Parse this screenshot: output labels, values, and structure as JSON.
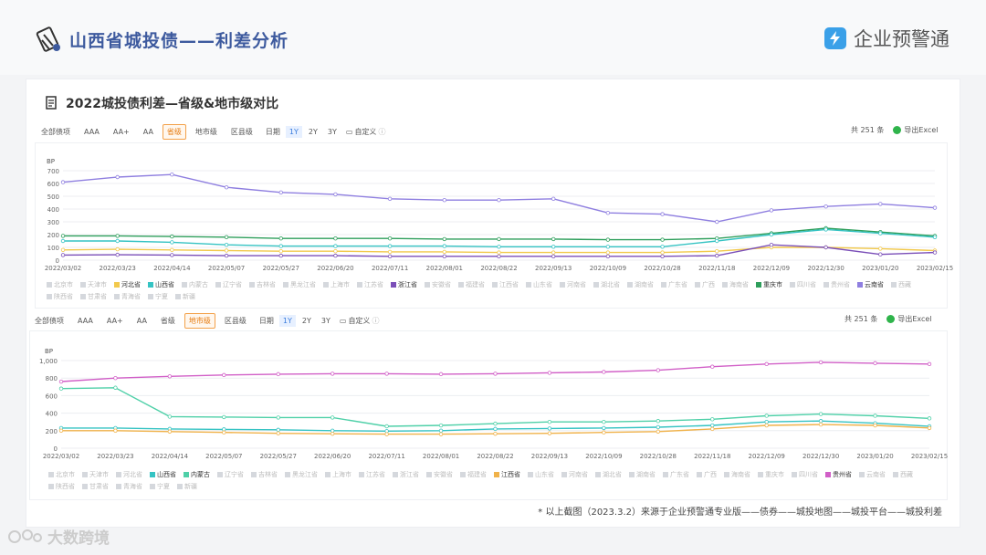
{
  "header": {
    "title": "山西省城投债——利差分析",
    "brand": "企业预警通"
  },
  "card": {
    "title": "2022城投债利差—省级&地市级对比"
  },
  "toolbar_top": {
    "tabs": [
      "全部债项",
      "AAA",
      "AA+",
      "AA",
      "省级",
      "地市级",
      "区县级"
    ],
    "active": "省级",
    "date_label": "日期",
    "periods": [
      "1Y",
      "2Y",
      "3Y"
    ],
    "active_period": "1Y",
    "custom": "自定义",
    "count": "共 251 条",
    "export": "导出Excel"
  },
  "toolbar_bottom": {
    "tabs": [
      "全部债项",
      "AAA",
      "AA+",
      "AA",
      "省级",
      "地市级",
      "区县级"
    ],
    "active": "地市级",
    "date_label": "日期",
    "periods": [
      "1Y",
      "2Y",
      "3Y"
    ],
    "active_period": "1Y",
    "custom": "自定义",
    "count": "共 251 条",
    "export": "导出Excel"
  },
  "legend_top": [
    {
      "name": "北京市",
      "color": ""
    },
    {
      "name": "天津市",
      "color": ""
    },
    {
      "name": "河北省",
      "color": "#f2c94c"
    },
    {
      "name": "山西省",
      "color": "#35c3c3"
    },
    {
      "name": "内蒙古",
      "color": ""
    },
    {
      "name": "辽宁省",
      "color": ""
    },
    {
      "name": "吉林省",
      "color": ""
    },
    {
      "name": "黑龙江省",
      "color": ""
    },
    {
      "name": "上海市",
      "color": ""
    },
    {
      "name": "江苏省",
      "color": ""
    },
    {
      "name": "浙江省",
      "color": "#7b4fb8"
    },
    {
      "name": "安徽省",
      "color": ""
    },
    {
      "name": "福建省",
      "color": ""
    },
    {
      "name": "江西省",
      "color": ""
    },
    {
      "name": "山东省",
      "color": ""
    },
    {
      "name": "河南省",
      "color": ""
    },
    {
      "name": "湖北省",
      "color": ""
    },
    {
      "name": "湖南省",
      "color": ""
    },
    {
      "name": "广东省",
      "color": ""
    },
    {
      "name": "广西",
      "color": ""
    },
    {
      "name": "海南省",
      "color": ""
    },
    {
      "name": "重庆市",
      "color": "#2e9e5b"
    },
    {
      "name": "四川省",
      "color": ""
    },
    {
      "name": "贵州省",
      "color": ""
    },
    {
      "name": "云南省",
      "color": "#8f7fe0"
    },
    {
      "name": "西藏",
      "color": ""
    },
    {
      "name": "陕西省",
      "color": ""
    },
    {
      "name": "甘肃省",
      "color": ""
    },
    {
      "name": "青海省",
      "color": ""
    },
    {
      "name": "宁夏",
      "color": ""
    },
    {
      "name": "新疆",
      "color": ""
    }
  ],
  "legend_bottom": [
    {
      "name": "北京市",
      "color": ""
    },
    {
      "name": "天津市",
      "color": ""
    },
    {
      "name": "河北省",
      "color": ""
    },
    {
      "name": "山西省",
      "color": "#35c3c3"
    },
    {
      "name": "内蒙古",
      "color": "#4fd0a8"
    },
    {
      "name": "辽宁省",
      "color": ""
    },
    {
      "name": "吉林省",
      "color": ""
    },
    {
      "name": "黑龙江省",
      "color": ""
    },
    {
      "name": "上海市",
      "color": ""
    },
    {
      "name": "江苏省",
      "color": ""
    },
    {
      "name": "浙江省",
      "color": ""
    },
    {
      "name": "安徽省",
      "color": ""
    },
    {
      "name": "福建省",
      "color": ""
    },
    {
      "name": "江西省",
      "color": "#f0b24a"
    },
    {
      "name": "山东省",
      "color": ""
    },
    {
      "name": "河南省",
      "color": ""
    },
    {
      "name": "湖北省",
      "color": ""
    },
    {
      "name": "湖南省",
      "color": ""
    },
    {
      "name": "广东省",
      "color": ""
    },
    {
      "name": "广西",
      "color": ""
    },
    {
      "name": "海南省",
      "color": ""
    },
    {
      "name": "重庆市",
      "color": ""
    },
    {
      "name": "四川省",
      "color": ""
    },
    {
      "name": "贵州省",
      "color": "#d15fc7"
    },
    {
      "name": "云南省",
      "color": ""
    },
    {
      "name": "西藏",
      "color": ""
    },
    {
      "name": "陕西省",
      "color": ""
    },
    {
      "name": "甘肃省",
      "color": ""
    },
    {
      "name": "青海省",
      "color": ""
    },
    {
      "name": "宁夏",
      "color": ""
    },
    {
      "name": "新疆",
      "color": ""
    }
  ],
  "footer": {
    "note": "* 以上截图（2023.3.2）来源于企业预警通专业版——债券——城投地图——城投平台——城投利差"
  },
  "watermark": "大数跨境",
  "chart_data": [
    {
      "type": "line",
      "ylabel": "BP",
      "ylim": [
        0,
        700
      ],
      "yticks": [
        0,
        100,
        200,
        300,
        400,
        500,
        600,
        700
      ],
      "x": [
        "2022/03/02",
        "2022/03/23",
        "2022/04/14",
        "2022/05/07",
        "2022/05/27",
        "2022/06/20",
        "2022/07/11",
        "2022/08/01",
        "2022/08/22",
        "2022/09/13",
        "2022/10/09",
        "2022/10/28",
        "2022/11/18",
        "2022/12/09",
        "2022/12/30",
        "2023/01/20",
        "2023/02/15"
      ],
      "series": [
        {
          "name": "云南省",
          "color": "#8f7fe0",
          "values": [
            610,
            650,
            670,
            570,
            530,
            515,
            480,
            470,
            470,
            480,
            370,
            360,
            300,
            390,
            420,
            440,
            410
          ]
        },
        {
          "name": "重庆市",
          "color": "#2e9e5b",
          "values": [
            190,
            190,
            185,
            180,
            170,
            170,
            170,
            165,
            165,
            165,
            160,
            160,
            170,
            210,
            250,
            220,
            190
          ]
        },
        {
          "name": "山西省",
          "color": "#35c3c3",
          "values": [
            150,
            150,
            140,
            120,
            110,
            110,
            110,
            110,
            105,
            105,
            105,
            105,
            150,
            200,
            240,
            210,
            180
          ]
        },
        {
          "name": "河北省",
          "color": "#f2c94c",
          "values": [
            80,
            85,
            80,
            75,
            70,
            70,
            65,
            65,
            60,
            60,
            60,
            60,
            70,
            100,
            100,
            90,
            75
          ]
        },
        {
          "name": "浙江省",
          "color": "#7b4fb8",
          "values": [
            40,
            42,
            40,
            35,
            35,
            35,
            30,
            30,
            30,
            30,
            30,
            30,
            35,
            120,
            100,
            45,
            60
          ]
        }
      ]
    },
    {
      "type": "line",
      "ylabel": "BP",
      "ylim": [
        0,
        1000
      ],
      "yticks": [
        0,
        200,
        400,
        600,
        800,
        1000
      ],
      "ytick_labels": [
        "0",
        "200",
        "400",
        "600",
        "800",
        "1,000"
      ],
      "x": [
        "2022/03/02",
        "2022/03/23",
        "2022/04/14",
        "2022/05/07",
        "2022/05/27",
        "2022/06/20",
        "2022/07/11",
        "2022/08/01",
        "2022/08/22",
        "2022/09/13",
        "2022/10/09",
        "2022/10/28",
        "2022/11/18",
        "2022/12/09",
        "2022/12/30",
        "2023/01/20",
        "2023/02/15"
      ],
      "series": [
        {
          "name": "贵州省",
          "color": "#d15fc7",
          "values": [
            760,
            800,
            820,
            835,
            845,
            850,
            850,
            845,
            850,
            860,
            870,
            890,
            930,
            960,
            980,
            970,
            960
          ]
        },
        {
          "name": "内蒙古",
          "color": "#4fd0a8",
          "values": [
            680,
            690,
            360,
            355,
            350,
            350,
            250,
            260,
            280,
            300,
            300,
            310,
            330,
            370,
            390,
            370,
            340
          ]
        },
        {
          "name": "山西省",
          "color": "#35c3c3",
          "values": [
            230,
            230,
            220,
            215,
            210,
            200,
            195,
            200,
            220,
            225,
            230,
            240,
            260,
            300,
            310,
            285,
            250
          ]
        },
        {
          "name": "江西省",
          "color": "#f0b24a",
          "values": [
            200,
            200,
            190,
            180,
            170,
            165,
            160,
            160,
            165,
            170,
            180,
            190,
            220,
            260,
            270,
            260,
            230
          ]
        }
      ]
    }
  ]
}
